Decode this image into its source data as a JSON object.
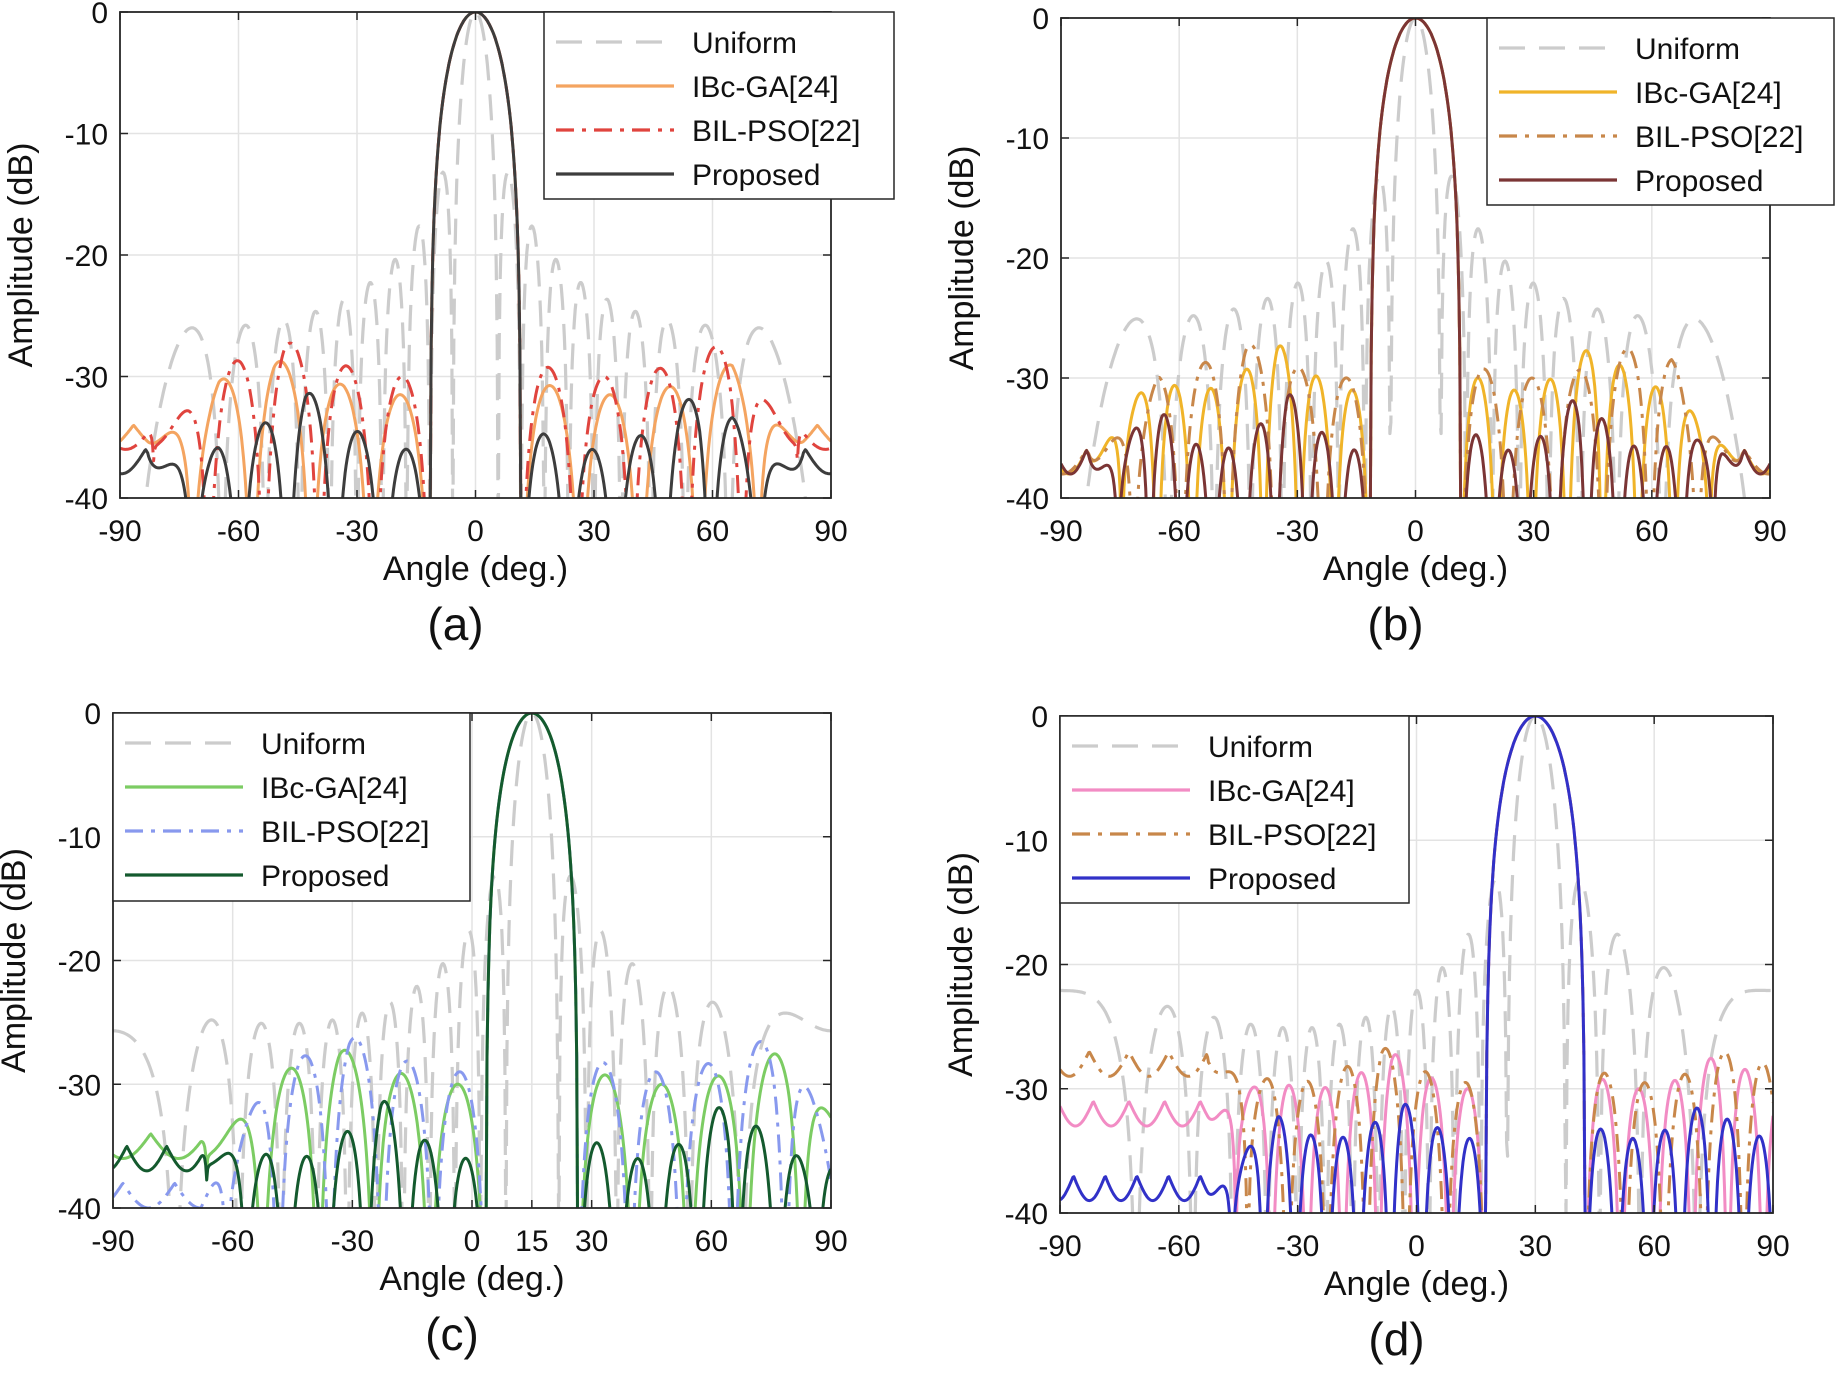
{
  "figure": {
    "subplot_labels": [
      "(a)",
      "(b)",
      "(c)",
      "(d)"
    ]
  },
  "chart_data": [
    {
      "type": "line",
      "id": "a",
      "panel_label": "(a)",
      "xlabel": "Angle (deg.)",
      "ylabel": "Amplitude (dB)",
      "xlim": [
        -90,
        90
      ],
      "ylim": [
        -40,
        0
      ],
      "xticks": [
        -90,
        -60,
        -30,
        0,
        30,
        60,
        90
      ],
      "xtick_labels": [
        "-90",
        "-60",
        "-30",
        "0",
        "30",
        "60",
        "90"
      ],
      "yticks": [
        -40,
        -30,
        -20,
        -10,
        0
      ],
      "ytick_labels": [
        "-40",
        "-30",
        "-20",
        "-10",
        "0"
      ],
      "grid": true,
      "legend_position": "top-right",
      "steer": 0,
      "series": [
        {
          "name": "Uniform",
          "color": "#cccccc",
          "dash": "dashed",
          "model": {
            "kind": "uniform",
            "N": 20,
            "steer": 0
          }
        },
        {
          "name": "IBc-GA[24]",
          "color": "#f4a460",
          "dash": "solid",
          "model": {
            "kind": "tapered",
            "hbw": 11,
            "sll": -28.5,
            "steer": 0,
            "ripple": 3,
            "tail": -34,
            "spacing": 15
          }
        },
        {
          "name": "BIL-PSO[22]",
          "color": "#e0443e",
          "dash": "dashdot",
          "model": {
            "kind": "tapered",
            "hbw": 11,
            "sll": -27,
            "steer": 0,
            "ripple": 3,
            "tail": -34,
            "spacing": 14
          }
        },
        {
          "name": "Proposed",
          "color": "#3d3d3d",
          "dash": "solid",
          "model": {
            "kind": "tapered",
            "hbw": 11,
            "sll": -31,
            "steer": 0,
            "ripple": 5,
            "tail": -36,
            "spacing": 12
          }
        }
      ]
    },
    {
      "type": "line",
      "id": "b",
      "panel_label": "(b)",
      "xlabel": "Angle (deg.)",
      "ylabel": "Amplitude (dB)",
      "xlim": [
        -90,
        90
      ],
      "ylim": [
        -40,
        0
      ],
      "xticks": [
        -90,
        -60,
        -30,
        0,
        30,
        60,
        90
      ],
      "xtick_labels": [
        "-90",
        "-60",
        "-30",
        "0",
        "30",
        "60",
        "90"
      ],
      "yticks": [
        -40,
        -30,
        -20,
        -10,
        0
      ],
      "ytick_labels": [
        "-40",
        "-30",
        "-20",
        "-10",
        "0"
      ],
      "grid": true,
      "legend_position": "top-right",
      "steer": 0,
      "series": [
        {
          "name": "Uniform",
          "color": "#cccccc",
          "dash": "dashed",
          "model": {
            "kind": "uniform",
            "N": 18,
            "steer": 0
          }
        },
        {
          "name": "IBc-GA[24]",
          "color": "#f0b429",
          "dash": "solid",
          "model": {
            "kind": "tapered",
            "hbw": 11,
            "sll": -27,
            "steer": 0,
            "ripple": 4,
            "tail": -36,
            "spacing": 9
          }
        },
        {
          "name": "BIL-PSO[22]",
          "color": "#c8874a",
          "dash": "dashdot",
          "model": {
            "kind": "tapered",
            "hbw": 11,
            "sll": -27,
            "steer": 0,
            "ripple": 3,
            "tail": -36,
            "spacing": 12
          }
        },
        {
          "name": "Proposed",
          "color": "#7b3535",
          "dash": "solid",
          "model": {
            "kind": "tapered",
            "hbw": 11,
            "sll": -31,
            "steer": 0,
            "ripple": 5,
            "tail": -36,
            "spacing": 8
          }
        }
      ]
    },
    {
      "type": "line",
      "id": "c",
      "panel_label": "(c)",
      "xlabel": "Angle (deg.)",
      "ylabel": "Amplitude (dB)",
      "xlim": [
        -90,
        90
      ],
      "ylim": [
        -40,
        0
      ],
      "xticks": [
        -90,
        -60,
        -30,
        0,
        15,
        30,
        60,
        90
      ],
      "xtick_labels": [
        "-90",
        "-60",
        "-30",
        "0",
        "15",
        "30",
        "60",
        "90"
      ],
      "yticks": [
        -40,
        -30,
        -20,
        -10,
        0
      ],
      "ytick_labels": [
        "-40",
        "-30",
        "-20",
        "-10",
        "0"
      ],
      "grid": true,
      "legend_position": "top-left",
      "steer": 15,
      "series": [
        {
          "name": "Uniform",
          "color": "#cccccc",
          "dash": "dashed",
          "model": {
            "kind": "uniform",
            "N": 18,
            "steer": 15
          }
        },
        {
          "name": "IBc-GA[24]",
          "color": "#7ccc63",
          "dash": "solid",
          "model": {
            "kind": "tapered",
            "hbw": 11,
            "sll": -27,
            "steer": 15,
            "ripple": 3,
            "tail": -34,
            "spacing": 14
          }
        },
        {
          "name": "BIL-PSO[22]",
          "color": "#8899ee",
          "dash": "dashdot",
          "model": {
            "kind": "tapered",
            "hbw": 11,
            "sll": -26,
            "steer": 15,
            "ripple": 3,
            "tail": -38,
            "spacing": 13
          }
        },
        {
          "name": "Proposed",
          "color": "#145a2e",
          "dash": "solid",
          "model": {
            "kind": "tapered",
            "hbw": 11,
            "sll": -31,
            "steer": 15,
            "ripple": 5,
            "tail": -35,
            "spacing": 10
          }
        }
      ]
    },
    {
      "type": "line",
      "id": "d",
      "panel_label": "(d)",
      "xlabel": "Angle (deg.)",
      "ylabel": "Amplitude (dB)",
      "xlim": [
        -90,
        90
      ],
      "ylim": [
        -40,
        0
      ],
      "xticks": [
        -90,
        -60,
        -30,
        0,
        30,
        60,
        90
      ],
      "xtick_labels": [
        "-90",
        "-60",
        "-30",
        "0",
        "30",
        "60",
        "90"
      ],
      "yticks": [
        -40,
        -30,
        -20,
        -10,
        0
      ],
      "ytick_labels": [
        "-40",
        "-30",
        "-20",
        "-10",
        "0"
      ],
      "grid": true,
      "legend_position": "top-left",
      "steer": 30,
      "series": [
        {
          "name": "Uniform",
          "color": "#cccccc",
          "dash": "dashed",
          "model": {
            "kind": "uniform",
            "N": 18,
            "steer": 30
          }
        },
        {
          "name": "IBc-GA[24]",
          "color": "#f28cc4",
          "dash": "solid",
          "model": {
            "kind": "tapered",
            "hbw": 12,
            "sll": -27,
            "steer": 30,
            "ripple": 3,
            "tail": -31,
            "spacing": 9
          }
        },
        {
          "name": "BIL-PSO[22]",
          "color": "#c8874a",
          "dash": "dashdot",
          "model": {
            "kind": "tapered",
            "hbw": 12,
            "sll": -26.5,
            "steer": 30,
            "ripple": 3,
            "tail": -27,
            "spacing": 10
          }
        },
        {
          "name": "Proposed",
          "color": "#3131c8",
          "dash": "solid",
          "model": {
            "kind": "tapered",
            "hbw": 12,
            "sll": -31,
            "steer": 30,
            "ripple": 3,
            "tail": -37,
            "spacing": 8
          }
        }
      ]
    }
  ]
}
